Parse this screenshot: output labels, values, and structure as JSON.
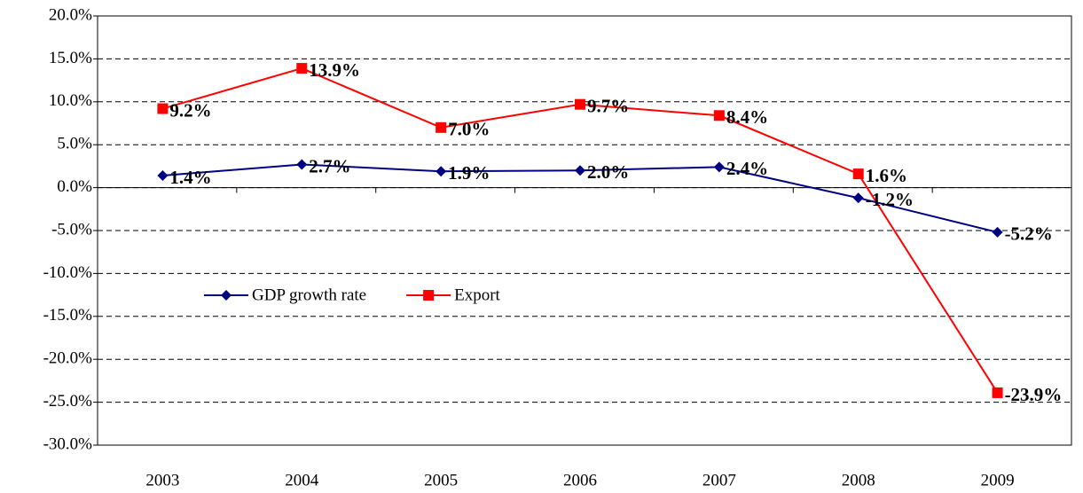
{
  "chart_data": {
    "type": "line",
    "categories": [
      "2003",
      "2004",
      "2005",
      "2006",
      "2007",
      "2008",
      "2009"
    ],
    "series": [
      {
        "name": "GDP growth rate",
        "color": "#000080",
        "marker": "diamond",
        "values": [
          1.4,
          2.7,
          1.9,
          2.0,
          2.4,
          -1.2,
          -5.2
        ],
        "value_labels": [
          "1.4%",
          "2.7%",
          "1.9%",
          "2.0%",
          "2.4%",
          "-1.2%",
          "-5.2%"
        ]
      },
      {
        "name": "Export",
        "color": "#ff0000",
        "marker": "square",
        "values": [
          9.2,
          13.9,
          7.0,
          9.7,
          8.4,
          1.6,
          -23.9
        ],
        "value_labels": [
          "9.2%",
          "13.9%",
          "7.0%",
          "9.7%",
          "8.4%",
          "1.6%",
          "-23.9%"
        ]
      }
    ],
    "ylim": [
      -30,
      20
    ],
    "yticks": [
      {
        "value": -30,
        "label": "-30.0%"
      },
      {
        "value": -25,
        "label": "-25.0%"
      },
      {
        "value": -20,
        "label": "-20.0%"
      },
      {
        "value": -15,
        "label": "-15.0%"
      },
      {
        "value": -10,
        "label": "-10.0%"
      },
      {
        "value": -5,
        "label": "-5.0%"
      },
      {
        "value": 0,
        "label": "0.0%"
      },
      {
        "value": 5,
        "label": "5.0%"
      },
      {
        "value": 10,
        "label": "10.0%"
      },
      {
        "value": 15,
        "label": "15.0%"
      },
      {
        "value": 20,
        "label": "20.0%"
      }
    ],
    "grid": true,
    "legend": "left"
  }
}
